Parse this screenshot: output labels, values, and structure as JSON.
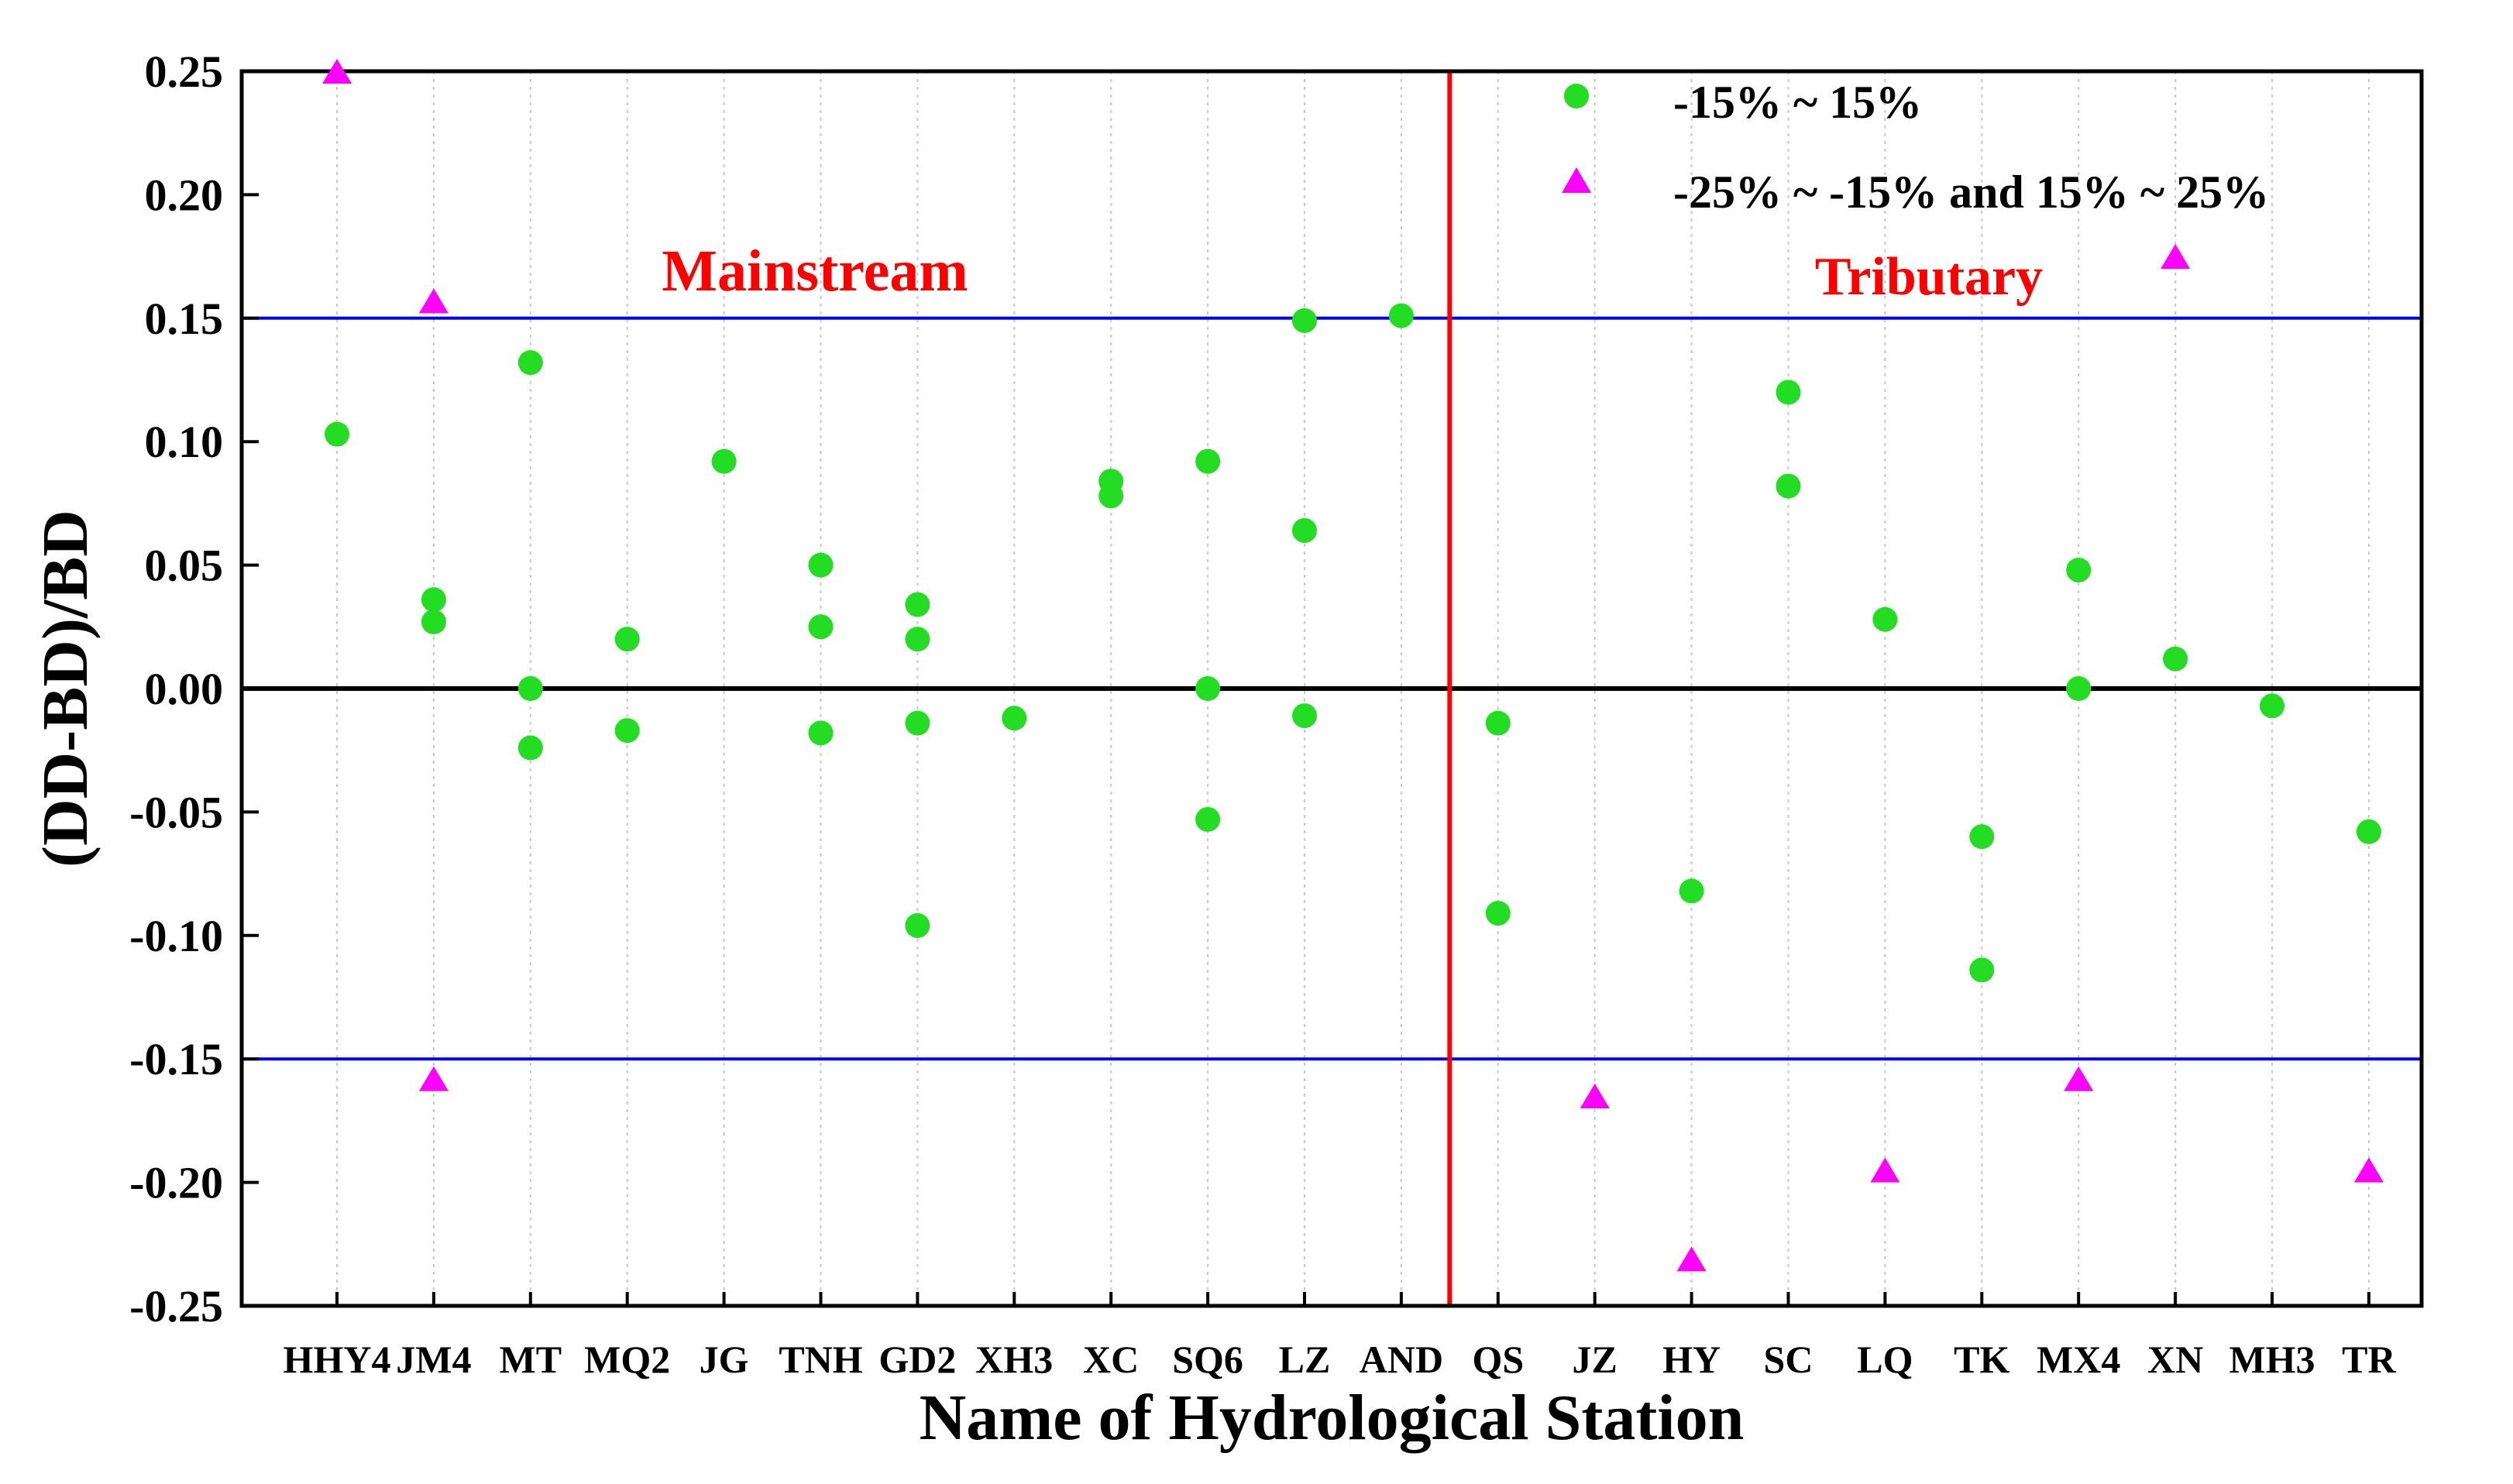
{
  "chart_data": {
    "type": "scatter",
    "xlabel": "Name of Hydrological Station",
    "ylabel": "(DD-BD)/BD",
    "ylim": [
      -0.25,
      0.25
    ],
    "y_ticks": [
      "-0.25",
      "-0.20",
      "-0.15",
      "-0.10",
      "-0.05",
      "0.00",
      "0.05",
      "0.10",
      "0.15",
      "0.20",
      "0.25"
    ],
    "categories": [
      "HHY4",
      "JM4",
      "MT",
      "MQ2",
      "JG",
      "TNH",
      "GD2",
      "XH3",
      "XC",
      "SQ6",
      "LZ",
      "AND",
      "QS",
      "JZ",
      "HY",
      "SC",
      "LQ",
      "TK",
      "MX4",
      "XN",
      "MH3",
      "TR"
    ],
    "grid": "vertical dotted",
    "reference_lines": [
      {
        "y": 0.15,
        "color": "#0000ff"
      },
      {
        "y": -0.15,
        "color": "#0000ff"
      },
      {
        "y": 0.0,
        "color": "#000000"
      }
    ],
    "divider": {
      "between": [
        "AND",
        "QS"
      ],
      "color": "#ff0000"
    },
    "region_labels": [
      {
        "text": "Mainstream",
        "side": "left",
        "color": "#ff0000"
      },
      {
        "text": "Tributary",
        "side": "right",
        "color": "#ff0000"
      }
    ],
    "series": [
      {
        "name": "-15% ~ 15%",
        "marker": "circle",
        "color": "#22dd22",
        "points": [
          [
            "HHY4",
            0.103
          ],
          [
            "JM4",
            0.036
          ],
          [
            "JM4",
            0.027
          ],
          [
            "MT",
            0.132
          ],
          [
            "MT",
            0.0
          ],
          [
            "MT",
            -0.024
          ],
          [
            "MQ2",
            0.02
          ],
          [
            "MQ2",
            -0.017
          ],
          [
            "JG",
            0.092
          ],
          [
            "TNH",
            0.05
          ],
          [
            "TNH",
            0.025
          ],
          [
            "TNH",
            -0.018
          ],
          [
            "GD2",
            0.034
          ],
          [
            "GD2",
            0.02
          ],
          [
            "GD2",
            -0.014
          ],
          [
            "GD2",
            -0.096
          ],
          [
            "XH3",
            -0.012
          ],
          [
            "XC",
            0.084
          ],
          [
            "XC",
            0.078
          ],
          [
            "SQ6",
            0.092
          ],
          [
            "SQ6",
            0.0
          ],
          [
            "SQ6",
            -0.053
          ],
          [
            "LZ",
            0.149
          ],
          [
            "LZ",
            0.064
          ],
          [
            "LZ",
            -0.011
          ],
          [
            "AND",
            0.151
          ],
          [
            "QS",
            -0.014
          ],
          [
            "QS",
            -0.091
          ],
          [
            "HY",
            -0.082
          ],
          [
            "SC",
            0.12
          ],
          [
            "SC",
            0.082
          ],
          [
            "LQ",
            0.028
          ],
          [
            "TK",
            -0.06
          ],
          [
            "TK",
            -0.114
          ],
          [
            "MX4",
            0.048
          ],
          [
            "MX4",
            0.0
          ],
          [
            "XN",
            0.012
          ],
          [
            "MH3",
            -0.007
          ],
          [
            "TR",
            -0.058
          ]
        ]
      },
      {
        "name": "-25% ~ -15% and 15% ~ 25%",
        "marker": "triangle",
        "color": "#ff00ff",
        "points": [
          [
            "HHY4",
            0.249
          ],
          [
            "JM4",
            0.156
          ],
          [
            "JM4",
            -0.159
          ],
          [
            "JZ",
            -0.166
          ],
          [
            "HY",
            -0.232
          ],
          [
            "LQ",
            -0.196
          ],
          [
            "MX4",
            -0.159
          ],
          [
            "XN",
            0.174
          ],
          [
            "TR",
            -0.196
          ]
        ]
      }
    ]
  }
}
